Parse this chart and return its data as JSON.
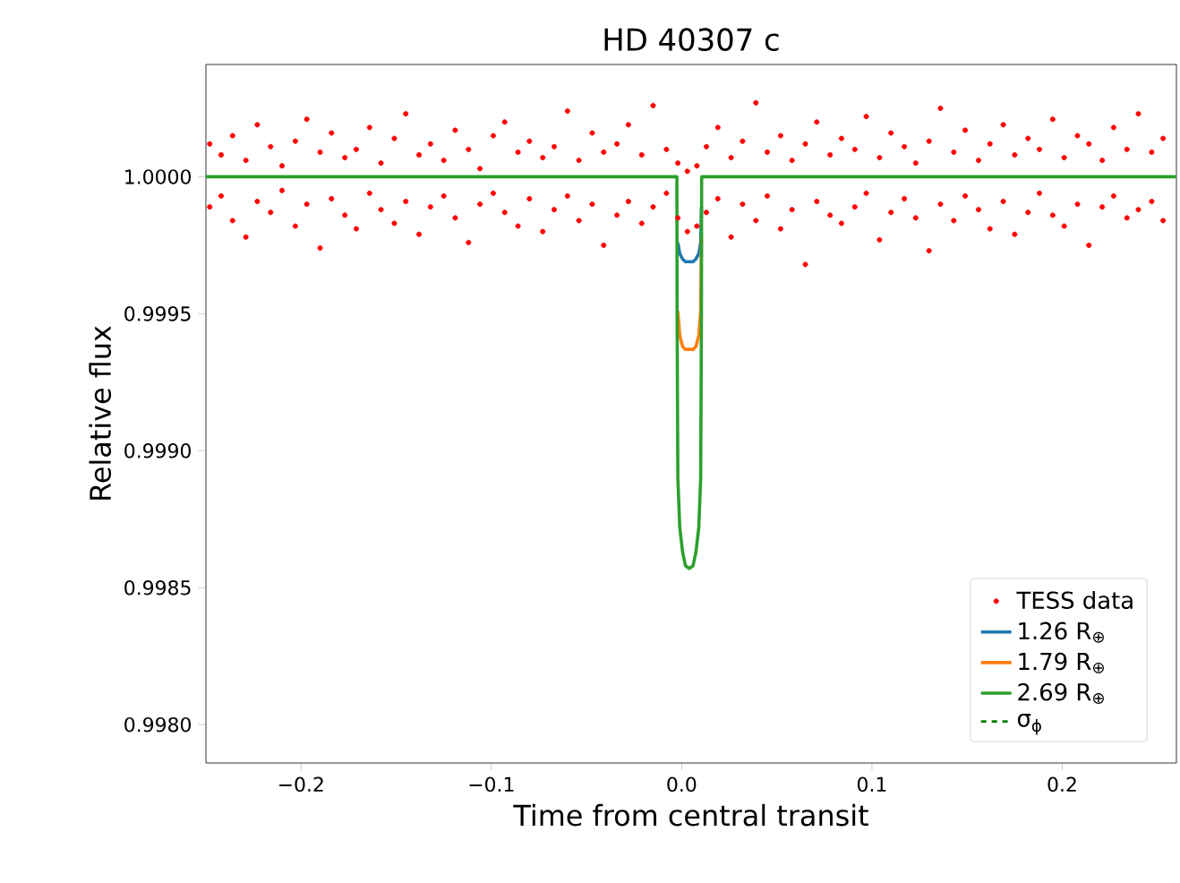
{
  "chart_data": {
    "type": "line",
    "title": "HD 40307 c",
    "xlabel": "Time from central transit",
    "ylabel": "Relative flux",
    "xlim": [
      -0.25,
      0.26
    ],
    "ylim": [
      0.99786,
      1.00041
    ],
    "xticks": [
      {
        "value": -0.2,
        "label": "−0.2"
      },
      {
        "value": -0.1,
        "label": "−0.1"
      },
      {
        "value": 0,
        "label": "0.0"
      },
      {
        "value": 0.1,
        "label": "0.1"
      },
      {
        "value": 0.2,
        "label": "0.2"
      }
    ],
    "yticks": [
      {
        "value": 0.998,
        "label": "0.9980"
      },
      {
        "value": 0.9985,
        "label": "0.9985"
      },
      {
        "value": 0.999,
        "label": "0.9990"
      },
      {
        "value": 0.9995,
        "label": "0.9995"
      },
      {
        "value": 1.0,
        "label": "1.0000"
      }
    ],
    "grid": false,
    "legend": "bottom right",
    "series": [
      {
        "name": "TESS data",
        "type": "scatter",
        "color": "#ff0000",
        "x": [
          -0.248,
          -0.242,
          -0.236,
          -0.229,
          -0.223,
          -0.216,
          -0.21,
          -0.203,
          -0.197,
          -0.19,
          -0.184,
          -0.177,
          -0.171,
          -0.164,
          -0.158,
          -0.151,
          -0.145,
          -0.138,
          -0.132,
          -0.125,
          -0.119,
          -0.112,
          -0.106,
          -0.099,
          -0.093,
          -0.086,
          -0.08,
          -0.073,
          -0.067,
          -0.06,
          -0.054,
          -0.047,
          -0.041,
          -0.034,
          -0.028,
          -0.021,
          -0.015,
          -0.008,
          -0.002,
          0.003,
          0.008,
          0.013,
          0.019,
          0.026,
          0.032,
          0.039,
          0.045,
          0.052,
          0.058,
          0.065,
          0.071,
          0.078,
          0.084,
          0.091,
          0.097,
          0.104,
          0.11,
          0.117,
          0.123,
          0.13,
          0.136,
          0.143,
          0.149,
          0.156,
          0.162,
          0.169,
          0.175,
          0.182,
          0.188,
          0.195,
          0.201,
          0.208,
          0.214,
          0.221,
          0.227,
          0.234,
          0.24,
          0.247,
          0.253,
          -0.248,
          -0.242,
          -0.236,
          -0.229,
          -0.223,
          -0.216,
          -0.21,
          -0.203,
          -0.197,
          -0.19,
          -0.184,
          -0.177,
          -0.171,
          -0.164,
          -0.158,
          -0.151,
          -0.145,
          -0.138,
          -0.132,
          -0.125,
          -0.119,
          -0.112,
          -0.106,
          -0.099,
          -0.093,
          -0.086,
          -0.08,
          -0.073,
          -0.067,
          -0.06,
          -0.054,
          -0.047,
          -0.041,
          -0.034,
          -0.028,
          -0.021,
          -0.015,
          -0.008,
          -0.002,
          0.003,
          0.008,
          0.013,
          0.019,
          0.026,
          0.032,
          0.039,
          0.045,
          0.052,
          0.058,
          0.065,
          0.071,
          0.078,
          0.084,
          0.091,
          0.097,
          0.104,
          0.11,
          0.117,
          0.123,
          0.13,
          0.136,
          0.143,
          0.149,
          0.156,
          0.162,
          0.169,
          0.175,
          0.182,
          0.188,
          0.195,
          0.201,
          0.208,
          0.214,
          0.221,
          0.227,
          0.234,
          0.24,
          0.247,
          0.253
        ],
        "values": [
          1.00012,
          1.00008,
          1.00015,
          1.00006,
          1.00019,
          1.00011,
          1.00004,
          1.00013,
          1.00021,
          1.00009,
          1.00016,
          1.00007,
          1.0001,
          1.00018,
          1.00005,
          1.00014,
          1.00023,
          1.00008,
          1.00012,
          1.00006,
          1.00017,
          1.0001,
          1.00003,
          1.00015,
          1.0002,
          1.00009,
          1.00013,
          1.00007,
          1.00011,
          1.00024,
          1.00006,
          1.00016,
          1.00009,
          1.00012,
          1.00019,
          1.00008,
          1.00026,
          1.0001,
          1.00005,
          1.00002,
          1.00004,
          1.00011,
          1.00018,
          1.00007,
          1.00013,
          1.00027,
          1.00009,
          1.00015,
          1.00006,
          1.00012,
          1.0002,
          1.00008,
          1.00014,
          1.0001,
          1.00022,
          1.00007,
          1.00016,
          1.00011,
          1.00005,
          1.00013,
          1.00025,
          1.00009,
          1.00017,
          1.00006,
          1.00012,
          1.00019,
          1.00008,
          1.00014,
          1.0001,
          1.00021,
          1.00007,
          1.00015,
          1.00012,
          1.00006,
          1.00018,
          1.0001,
          1.00023,
          1.00009,
          1.00014,
          0.99989,
          0.99993,
          0.99984,
          0.99978,
          0.99991,
          0.99987,
          0.99995,
          0.99982,
          0.9999,
          0.99974,
          0.99992,
          0.99986,
          0.99981,
          0.99994,
          0.99988,
          0.99983,
          0.99991,
          0.99979,
          0.99989,
          0.99993,
          0.99985,
          0.99976,
          0.9999,
          0.99994,
          0.99987,
          0.99982,
          0.99992,
          0.9998,
          0.99988,
          0.99993,
          0.99984,
          0.9999,
          0.99975,
          0.99986,
          0.99991,
          0.99983,
          0.99989,
          0.99994,
          0.99985,
          0.9998,
          0.99982,
          0.99987,
          0.99992,
          0.99978,
          0.9999,
          0.99984,
          0.99993,
          0.99981,
          0.99988,
          0.99968,
          0.99991,
          0.99986,
          0.99983,
          0.99989,
          0.99994,
          0.99977,
          0.99987,
          0.99992,
          0.99985,
          0.99973,
          0.9999,
          0.99984,
          0.99993,
          0.99988,
          0.99981,
          0.99991,
          0.99979,
          0.99987,
          0.99994,
          0.99986,
          0.99982,
          0.9999,
          0.99975,
          0.99989,
          0.99993,
          0.99985,
          0.99988,
          0.99991,
          0.99984
        ]
      },
      {
        "name": "1.26 R$_{⊕}$",
        "color": "#1f77b4",
        "x": [
          -0.002,
          -0.001,
          0.0005,
          0.002,
          0.004,
          0.006,
          0.0075,
          0.009,
          0.01,
          0.0104
        ],
        "values": [
          0.99976,
          0.99972,
          0.9997,
          0.99969,
          0.99969,
          0.99969,
          0.9997,
          0.99972,
          0.99976,
          0.99989
        ]
      },
      {
        "name": "1.79 R$_{⊕}$",
        "color": "#ff7f0e",
        "x": [
          -0.002,
          -0.001,
          0.0005,
          0.002,
          0.004,
          0.006,
          0.0075,
          0.009,
          0.01,
          0.0104
        ],
        "values": [
          0.99951,
          0.99942,
          0.99938,
          0.99937,
          0.99937,
          0.99937,
          0.99938,
          0.99942,
          0.99951,
          0.99978
        ]
      },
      {
        "name": "2.69 R$_{⊕}$",
        "color": "#2ca02c",
        "x": [
          -0.25,
          -0.0025,
          -0.0024,
          -0.002,
          -0.001,
          0.0005,
          0.002,
          0.004,
          0.006,
          0.0075,
          0.009,
          0.01,
          0.0104,
          0.0105,
          0.26
        ],
        "values": [
          1.0,
          1.0,
          0.9995,
          0.9989,
          0.99872,
          0.99863,
          0.99858,
          0.99857,
          0.99858,
          0.99863,
          0.99872,
          0.9989,
          0.9995,
          1.0,
          1.0
        ]
      },
      {
        "name": "σ$_{ϕ}$",
        "color": "#008000",
        "line_style": "dashed"
      }
    ]
  }
}
